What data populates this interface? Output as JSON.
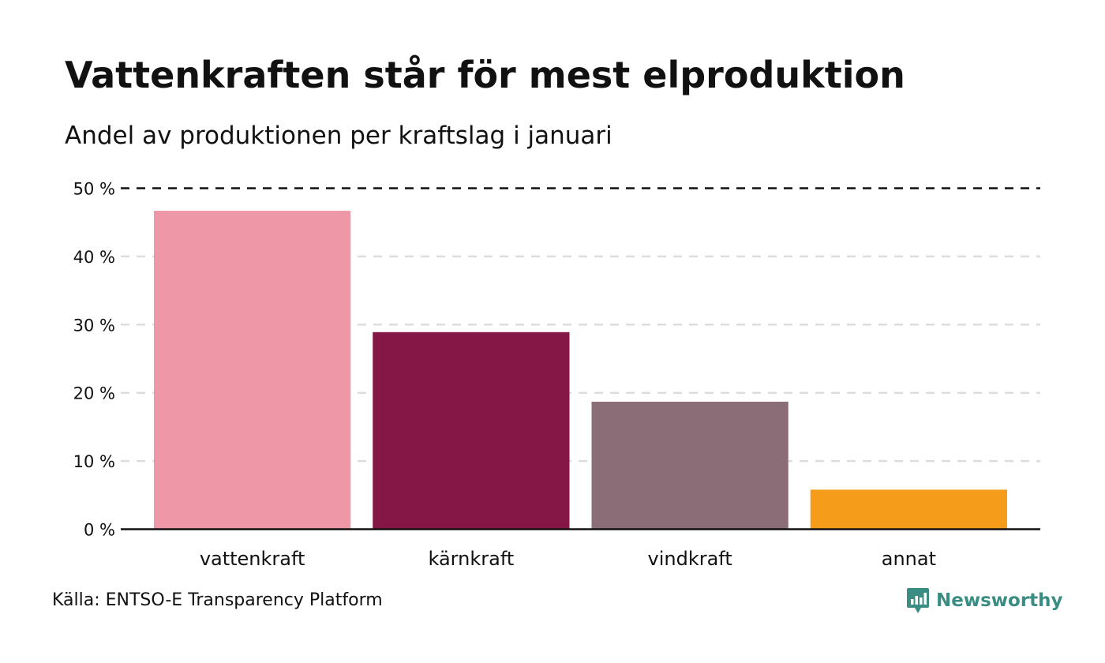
{
  "chart_data": {
    "type": "bar",
    "title": "Vattenkraften står för mest elproduktion",
    "subtitle": "Andel av produktionen per kraftslag i januari",
    "categories": [
      "vattenkraft",
      "kärnkraft",
      "vindkraft",
      "annat"
    ],
    "values": [
      46.7,
      28.9,
      18.7,
      5.8
    ],
    "colors": [
      "#ee97a7",
      "#851747",
      "#8a6d76",
      "#f59c1a"
    ],
    "ylim": [
      0,
      50
    ],
    "yticks": [
      0,
      10,
      20,
      30,
      40,
      50
    ],
    "ytick_labels": [
      "0 %",
      "10 %",
      "20 %",
      "30 %",
      "40 %",
      "50 %"
    ],
    "xlabel": "",
    "ylabel": "",
    "grid": true
  },
  "source": "Källa: ENTSO-E Transparency Platform",
  "brand": {
    "name": "Newsworthy",
    "icon": "newsworthy-logo-icon",
    "color": "#3a8d82"
  }
}
